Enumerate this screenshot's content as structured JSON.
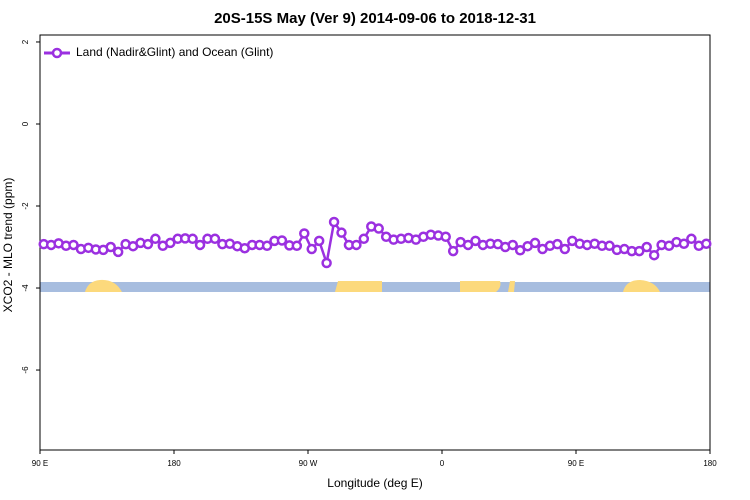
{
  "chart_data": {
    "type": "line",
    "title": "20S-15S May (Ver 9)   2014-09-06 to 2018-12-31",
    "xlabel": "Longitude (deg E)",
    "ylabel": "XCO2 - MLO trend (ppm)",
    "xlim": [
      90,
      540
    ],
    "xticks": [
      {
        "value": 90,
        "label": "90 E"
      },
      180,
      {
        "value": 270,
        "label": "90 W"
      },
      {
        "value": 360,
        "label": "0"
      },
      {
        "value": 450,
        "label": "90 E"
      },
      {
        "value": 540,
        "label": "180"
      }
    ],
    "ylim": [
      -7.95,
      2.17
    ],
    "yticks": [
      2,
      0,
      -2,
      -4,
      -6
    ],
    "legend": "top-left",
    "x": [
      92.5,
      97.5,
      102.5,
      107.5,
      112.5,
      117.5,
      122.5,
      127.5,
      132.5,
      137.5,
      142.5,
      147.5,
      152.5,
      157.5,
      162.5,
      167.5,
      172.5,
      177.5,
      182.5,
      187.5,
      192.5,
      197.5,
      202.5,
      207.5,
      212.5,
      217.5,
      222.5,
      227.5,
      232.5,
      237.5,
      242.5,
      247.5,
      252.5,
      257.5,
      262.5,
      267.5,
      272.5,
      277.5,
      282.5,
      287.5,
      292.5,
      297.5,
      302.5,
      307.5,
      312.5,
      317.5,
      322.5,
      327.5,
      332.5,
      337.5,
      342.5,
      347.5,
      352.5,
      357.5,
      362.5,
      367.5,
      372.5,
      377.5,
      382.5,
      387.5,
      392.5,
      397.5,
      402.5,
      407.5,
      412.5,
      417.5,
      422.5,
      427.5,
      432.5,
      437.5,
      442.5,
      447.5,
      452.5,
      457.5,
      462.5,
      467.5,
      472.5,
      477.5,
      482.5,
      487.5,
      492.5,
      497.5,
      502.5,
      507.5,
      512.5,
      517.5,
      522.5,
      527.5,
      532.5,
      537.5
    ],
    "series": [
      {
        "name": "Land (Nadir&Glint) and Ocean (Glint)",
        "color": "#9b30e0",
        "values": [
          -2.93,
          -2.95,
          -2.91,
          -2.97,
          -2.95,
          -3.05,
          -3.02,
          -3.06,
          -3.07,
          -3.0,
          -3.12,
          -2.93,
          -2.98,
          -2.9,
          -2.93,
          -2.8,
          -2.97,
          -2.9,
          -2.8,
          -2.79,
          -2.8,
          -2.95,
          -2.8,
          -2.8,
          -2.93,
          -2.92,
          -2.98,
          -3.03,
          -2.95,
          -2.95,
          -2.97,
          -2.85,
          -2.84,
          -2.96,
          -2.97,
          -2.67,
          -3.05,
          -2.85,
          -3.39,
          -2.39,
          -2.65,
          -2.95,
          -2.95,
          -2.8,
          -2.5,
          -2.55,
          -2.75,
          -2.82,
          -2.8,
          -2.78,
          -2.82,
          -2.75,
          -2.7,
          -2.72,
          -2.75,
          -3.1,
          -2.88,
          -2.95,
          -2.85,
          -2.95,
          -2.92,
          -2.93,
          -3.0,
          -2.95,
          -3.08,
          -2.98,
          -2.9,
          -3.05,
          -2.97,
          -2.93,
          -3.05,
          -2.85,
          -2.92,
          -2.95,
          -2.92,
          -2.97,
          -2.97,
          -3.07,
          -3.05,
          -3.1,
          -3.1,
          -3.0,
          -3.2,
          -2.95,
          -2.97,
          -2.88,
          -2.92,
          -2.8,
          -2.97,
          -2.92
        ]
      }
    ]
  }
}
